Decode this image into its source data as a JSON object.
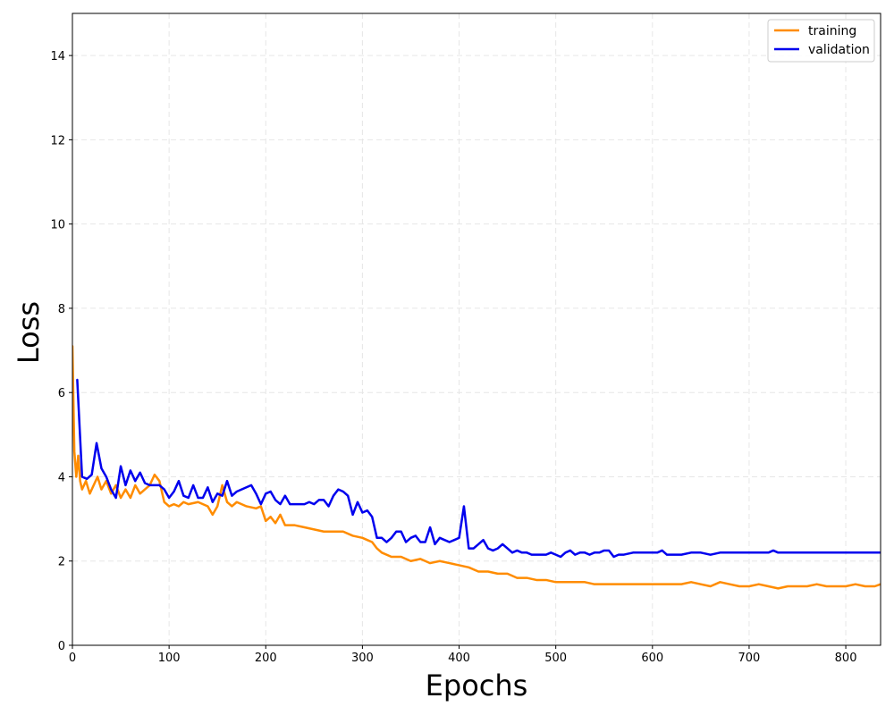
{
  "chart_data": {
    "type": "line",
    "xlabel": "Epochs",
    "ylabel": "Loss",
    "xlim": [
      0,
      836
    ],
    "ylim": [
      0,
      15
    ],
    "xticks": [
      0,
      100,
      200,
      300,
      400,
      500,
      600,
      700,
      800
    ],
    "yticks": [
      0,
      2,
      4,
      6,
      8,
      10,
      12,
      14
    ],
    "grid": true,
    "legend_position": "top-right",
    "series": [
      {
        "name": "training",
        "color": "#ff8c00",
        "points": [
          [
            0,
            7.1
          ],
          [
            2,
            4.6
          ],
          [
            4,
            4.0
          ],
          [
            6,
            4.5
          ],
          [
            8,
            3.9
          ],
          [
            10,
            3.7
          ],
          [
            14,
            3.9
          ],
          [
            18,
            3.6
          ],
          [
            22,
            3.8
          ],
          [
            26,
            4.0
          ],
          [
            30,
            3.7
          ],
          [
            35,
            3.9
          ],
          [
            40,
            3.6
          ],
          [
            45,
            3.8
          ],
          [
            50,
            3.5
          ],
          [
            55,
            3.7
          ],
          [
            60,
            3.5
          ],
          [
            65,
            3.8
          ],
          [
            70,
            3.6
          ],
          [
            75,
            3.7
          ],
          [
            80,
            3.8
          ],
          [
            85,
            4.05
          ],
          [
            90,
            3.9
          ],
          [
            95,
            3.4
          ],
          [
            100,
            3.3
          ],
          [
            105,
            3.35
          ],
          [
            110,
            3.3
          ],
          [
            115,
            3.4
          ],
          [
            120,
            3.35
          ],
          [
            130,
            3.4
          ],
          [
            140,
            3.3
          ],
          [
            145,
            3.1
          ],
          [
            150,
            3.3
          ],
          [
            155,
            3.8
          ],
          [
            160,
            3.4
          ],
          [
            165,
            3.3
          ],
          [
            170,
            3.4
          ],
          [
            180,
            3.3
          ],
          [
            190,
            3.25
          ],
          [
            195,
            3.3
          ],
          [
            200,
            2.95
          ],
          [
            205,
            3.05
          ],
          [
            210,
            2.9
          ],
          [
            215,
            3.1
          ],
          [
            220,
            2.85
          ],
          [
            230,
            2.85
          ],
          [
            240,
            2.8
          ],
          [
            250,
            2.75
          ],
          [
            260,
            2.7
          ],
          [
            270,
            2.7
          ],
          [
            280,
            2.7
          ],
          [
            290,
            2.6
          ],
          [
            300,
            2.55
          ],
          [
            305,
            2.5
          ],
          [
            310,
            2.45
          ],
          [
            315,
            2.3
          ],
          [
            320,
            2.2
          ],
          [
            330,
            2.1
          ],
          [
            340,
            2.1
          ],
          [
            350,
            2.0
          ],
          [
            360,
            2.05
          ],
          [
            370,
            1.95
          ],
          [
            380,
            2.0
          ],
          [
            390,
            1.95
          ],
          [
            400,
            1.9
          ],
          [
            410,
            1.85
          ],
          [
            420,
            1.75
          ],
          [
            430,
            1.75
          ],
          [
            440,
            1.7
          ],
          [
            450,
            1.7
          ],
          [
            460,
            1.6
          ],
          [
            470,
            1.6
          ],
          [
            480,
            1.55
          ],
          [
            490,
            1.55
          ],
          [
            500,
            1.5
          ],
          [
            510,
            1.5
          ],
          [
            520,
            1.5
          ],
          [
            530,
            1.5
          ],
          [
            540,
            1.45
          ],
          [
            550,
            1.45
          ],
          [
            560,
            1.45
          ],
          [
            570,
            1.45
          ],
          [
            580,
            1.45
          ],
          [
            590,
            1.45
          ],
          [
            600,
            1.45
          ],
          [
            610,
            1.45
          ],
          [
            620,
            1.45
          ],
          [
            630,
            1.45
          ],
          [
            640,
            1.5
          ],
          [
            650,
            1.45
          ],
          [
            660,
            1.4
          ],
          [
            670,
            1.5
          ],
          [
            680,
            1.45
          ],
          [
            690,
            1.4
          ],
          [
            700,
            1.4
          ],
          [
            710,
            1.45
          ],
          [
            720,
            1.4
          ],
          [
            730,
            1.35
          ],
          [
            740,
            1.4
          ],
          [
            750,
            1.4
          ],
          [
            760,
            1.4
          ],
          [
            770,
            1.45
          ],
          [
            780,
            1.4
          ],
          [
            790,
            1.4
          ],
          [
            800,
            1.4
          ],
          [
            810,
            1.45
          ],
          [
            820,
            1.4
          ],
          [
            830,
            1.4
          ],
          [
            836,
            1.45
          ]
        ]
      },
      {
        "name": "validation",
        "color": "#0000ee",
        "points": [
          [
            5,
            6.3
          ],
          [
            10,
            4.0
          ],
          [
            15,
            3.95
          ],
          [
            20,
            4.05
          ],
          [
            25,
            4.8
          ],
          [
            30,
            4.2
          ],
          [
            35,
            4.0
          ],
          [
            40,
            3.7
          ],
          [
            45,
            3.5
          ],
          [
            50,
            4.25
          ],
          [
            55,
            3.8
          ],
          [
            60,
            4.15
          ],
          [
            65,
            3.9
          ],
          [
            70,
            4.1
          ],
          [
            75,
            3.85
          ],
          [
            80,
            3.8
          ],
          [
            90,
            3.8
          ],
          [
            95,
            3.7
          ],
          [
            100,
            3.5
          ],
          [
            105,
            3.65
          ],
          [
            110,
            3.9
          ],
          [
            115,
            3.55
          ],
          [
            120,
            3.5
          ],
          [
            125,
            3.8
          ],
          [
            130,
            3.5
          ],
          [
            135,
            3.5
          ],
          [
            140,
            3.75
          ],
          [
            145,
            3.4
          ],
          [
            150,
            3.6
          ],
          [
            155,
            3.55
          ],
          [
            160,
            3.9
          ],
          [
            165,
            3.55
          ],
          [
            170,
            3.65
          ],
          [
            175,
            3.7
          ],
          [
            180,
            3.75
          ],
          [
            185,
            3.8
          ],
          [
            190,
            3.6
          ],
          [
            195,
            3.35
          ],
          [
            200,
            3.6
          ],
          [
            205,
            3.65
          ],
          [
            210,
            3.45
          ],
          [
            215,
            3.35
          ],
          [
            220,
            3.55
          ],
          [
            225,
            3.35
          ],
          [
            230,
            3.35
          ],
          [
            240,
            3.35
          ],
          [
            245,
            3.4
          ],
          [
            250,
            3.35
          ],
          [
            255,
            3.45
          ],
          [
            260,
            3.45
          ],
          [
            265,
            3.3
          ],
          [
            270,
            3.55
          ],
          [
            275,
            3.7
          ],
          [
            280,
            3.65
          ],
          [
            285,
            3.55
          ],
          [
            290,
            3.1
          ],
          [
            295,
            3.4
          ],
          [
            300,
            3.15
          ],
          [
            305,
            3.2
          ],
          [
            310,
            3.05
          ],
          [
            315,
            2.55
          ],
          [
            320,
            2.55
          ],
          [
            325,
            2.45
          ],
          [
            330,
            2.55
          ],
          [
            335,
            2.7
          ],
          [
            340,
            2.7
          ],
          [
            345,
            2.45
          ],
          [
            350,
            2.55
          ],
          [
            355,
            2.6
          ],
          [
            360,
            2.45
          ],
          [
            365,
            2.45
          ],
          [
            370,
            2.8
          ],
          [
            375,
            2.4
          ],
          [
            380,
            2.55
          ],
          [
            385,
            2.5
          ],
          [
            390,
            2.45
          ],
          [
            395,
            2.5
          ],
          [
            400,
            2.55
          ],
          [
            405,
            3.3
          ],
          [
            410,
            2.3
          ],
          [
            415,
            2.3
          ],
          [
            420,
            2.4
          ],
          [
            425,
            2.5
          ],
          [
            430,
            2.3
          ],
          [
            435,
            2.25
          ],
          [
            440,
            2.3
          ],
          [
            445,
            2.4
          ],
          [
            450,
            2.3
          ],
          [
            455,
            2.2
          ],
          [
            460,
            2.25
          ],
          [
            465,
            2.2
          ],
          [
            470,
            2.2
          ],
          [
            475,
            2.15
          ],
          [
            480,
            2.15
          ],
          [
            485,
            2.15
          ],
          [
            490,
            2.15
          ],
          [
            495,
            2.2
          ],
          [
            500,
            2.15
          ],
          [
            505,
            2.1
          ],
          [
            510,
            2.2
          ],
          [
            515,
            2.25
          ],
          [
            520,
            2.15
          ],
          [
            525,
            2.2
          ],
          [
            530,
            2.2
          ],
          [
            535,
            2.15
          ],
          [
            540,
            2.2
          ],
          [
            545,
            2.2
          ],
          [
            550,
            2.25
          ],
          [
            555,
            2.25
          ],
          [
            560,
            2.1
          ],
          [
            565,
            2.15
          ],
          [
            570,
            2.15
          ],
          [
            580,
            2.2
          ],
          [
            590,
            2.2
          ],
          [
            600,
            2.2
          ],
          [
            605,
            2.2
          ],
          [
            610,
            2.25
          ],
          [
            615,
            2.15
          ],
          [
            620,
            2.15
          ],
          [
            630,
            2.15
          ],
          [
            640,
            2.2
          ],
          [
            650,
            2.2
          ],
          [
            660,
            2.15
          ],
          [
            670,
            2.2
          ],
          [
            680,
            2.2
          ],
          [
            690,
            2.2
          ],
          [
            700,
            2.2
          ],
          [
            710,
            2.2
          ],
          [
            720,
            2.2
          ],
          [
            725,
            2.25
          ],
          [
            730,
            2.2
          ],
          [
            740,
            2.2
          ],
          [
            750,
            2.2
          ],
          [
            760,
            2.2
          ],
          [
            770,
            2.2
          ],
          [
            780,
            2.2
          ],
          [
            790,
            2.2
          ],
          [
            800,
            2.2
          ],
          [
            810,
            2.2
          ],
          [
            820,
            2.2
          ],
          [
            830,
            2.2
          ],
          [
            836,
            2.2
          ]
        ]
      }
    ]
  }
}
